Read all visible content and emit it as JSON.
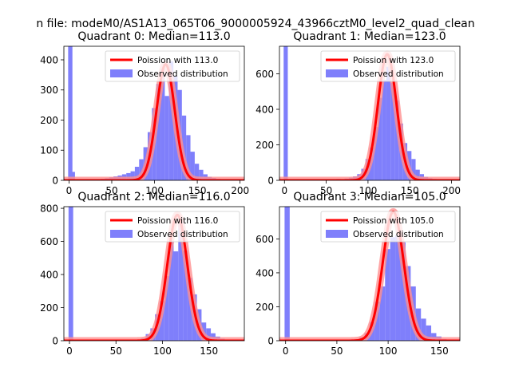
{
  "suptitle": "n file: modeM0/AS1A13_065T06_9000005924_43966cztM0_level2_quad_clean",
  "legend_labels": {
    "fit": "Poission with",
    "observed": "Observed distribution"
  },
  "colors": {
    "histogram": "#7f7ffb",
    "fit_line": "#ff0000",
    "fit_glow": "#ff9090"
  },
  "chart_data": [
    {
      "type": "bar",
      "title": "Quadrant 0: Median=113.0",
      "median": 113.0,
      "legend_fit": "Poission with 113.0",
      "legend_observed": "Observed distribution",
      "legend_position": "top-right",
      "xlim": [
        -6,
        205
      ],
      "ylim": [
        0,
        445
      ],
      "xticks": [
        0,
        50,
        100,
        150,
        200
      ],
      "yticks": [
        0,
        100,
        200,
        300,
        400
      ],
      "bin_width": 5,
      "bins": [
        [
          -1,
          445
        ],
        [
          2,
          28
        ],
        [
          37,
          5
        ],
        [
          42,
          7
        ],
        [
          47,
          10
        ],
        [
          52,
          13
        ],
        [
          57,
          16
        ],
        [
          62,
          20
        ],
        [
          67,
          24
        ],
        [
          72,
          30
        ],
        [
          77,
          45
        ],
        [
          82,
          70
        ],
        [
          87,
          110
        ],
        [
          92,
          160
        ],
        [
          97,
          240
        ],
        [
          102,
          320
        ],
        [
          107,
          370
        ],
        [
          112,
          280
        ],
        [
          117,
          395
        ],
        [
          122,
          345
        ],
        [
          127,
          300
        ],
        [
          132,
          215
        ],
        [
          137,
          150
        ],
        [
          142,
          95
        ],
        [
          147,
          55
        ],
        [
          152,
          35
        ],
        [
          157,
          20
        ],
        [
          162,
          12
        ],
        [
          167,
          8
        ],
        [
          172,
          5
        ],
        [
          177,
          3
        ],
        [
          187,
          2
        ]
      ],
      "poisson_peak": 385
    },
    {
      "type": "bar",
      "title": "Quadrant 1: Median=123.0",
      "median": 123.0,
      "legend_fit": "Poission with 123.0",
      "legend_observed": "Observed distribution",
      "legend_position": "top-right",
      "xlim": [
        -6,
        210
      ],
      "ylim": [
        0,
        755
      ],
      "xticks": [
        0,
        50,
        100,
        150,
        200
      ],
      "yticks": [
        0,
        200,
        400,
        600
      ],
      "bin_width": 5,
      "bins": [
        [
          -1,
          755
        ],
        [
          52,
          5
        ],
        [
          62,
          8
        ],
        [
          72,
          10
        ],
        [
          77,
          15
        ],
        [
          82,
          22
        ],
        [
          87,
          35
        ],
        [
          92,
          65
        ],
        [
          97,
          120
        ],
        [
          102,
          185
        ],
        [
          107,
          300
        ],
        [
          112,
          465
        ],
        [
          117,
          565
        ],
        [
          122,
          640
        ],
        [
          127,
          550
        ],
        [
          132,
          450
        ],
        [
          137,
          320
        ],
        [
          142,
          210
        ],
        [
          147,
          165
        ],
        [
          152,
          120
        ],
        [
          157,
          60
        ],
        [
          162,
          35
        ],
        [
          167,
          20
        ],
        [
          172,
          12
        ],
        [
          177,
          8
        ],
        [
          182,
          5
        ],
        [
          187,
          3
        ]
      ],
      "poisson_peak": 710
    },
    {
      "type": "bar",
      "title": "Quadrant 2: Median=116.0",
      "median": 116.0,
      "legend_fit": "Poission with 116.0",
      "legend_observed": "Observed distribution",
      "legend_position": "top-right",
      "xlim": [
        -6,
        188
      ],
      "ylim": [
        0,
        810
      ],
      "xticks": [
        0,
        50,
        100,
        150
      ],
      "yticks": [
        0,
        200,
        400,
        600,
        800
      ],
      "bin_width": 5,
      "bins": [
        [
          -1,
          810
        ],
        [
          77,
          15
        ],
        [
          82,
          40
        ],
        [
          87,
          75
        ],
        [
          92,
          160
        ],
        [
          97,
          240
        ],
        [
          102,
          390
        ],
        [
          107,
          600
        ],
        [
          112,
          540
        ],
        [
          117,
          720
        ],
        [
          122,
          545
        ],
        [
          127,
          380
        ],
        [
          132,
          280
        ],
        [
          137,
          190
        ],
        [
          142,
          110
        ],
        [
          147,
          75
        ],
        [
          152,
          45
        ],
        [
          157,
          25
        ],
        [
          162,
          12
        ],
        [
          167,
          6
        ],
        [
          172,
          3
        ]
      ],
      "poisson_peak": 760
    },
    {
      "type": "bar",
      "title": "Quadrant 3: Median=105.0",
      "median": 105.0,
      "legend_fit": "Poission with 105.0",
      "legend_observed": "Observed distribution",
      "legend_position": "top-right",
      "xlim": [
        -6,
        170
      ],
      "ylim": [
        0,
        790
      ],
      "xticks": [
        0,
        50,
        100,
        150
      ],
      "yticks": [
        0,
        200,
        400,
        600
      ],
      "bin_width": 5,
      "bins": [
        [
          -1,
          790
        ],
        [
          52,
          5
        ],
        [
          62,
          8
        ],
        [
          67,
          10
        ],
        [
          72,
          20
        ],
        [
          77,
          45
        ],
        [
          82,
          110
        ],
        [
          87,
          230
        ],
        [
          92,
          320
        ],
        [
          97,
          540
        ],
        [
          102,
          610
        ],
        [
          107,
          620
        ],
        [
          112,
          580
        ],
        [
          117,
          440
        ],
        [
          122,
          320
        ],
        [
          127,
          190
        ],
        [
          132,
          130
        ],
        [
          137,
          90
        ],
        [
          142,
          45
        ],
        [
          147,
          25
        ],
        [
          152,
          10
        ],
        [
          157,
          5
        ]
      ],
      "poisson_peak": 760
    }
  ]
}
